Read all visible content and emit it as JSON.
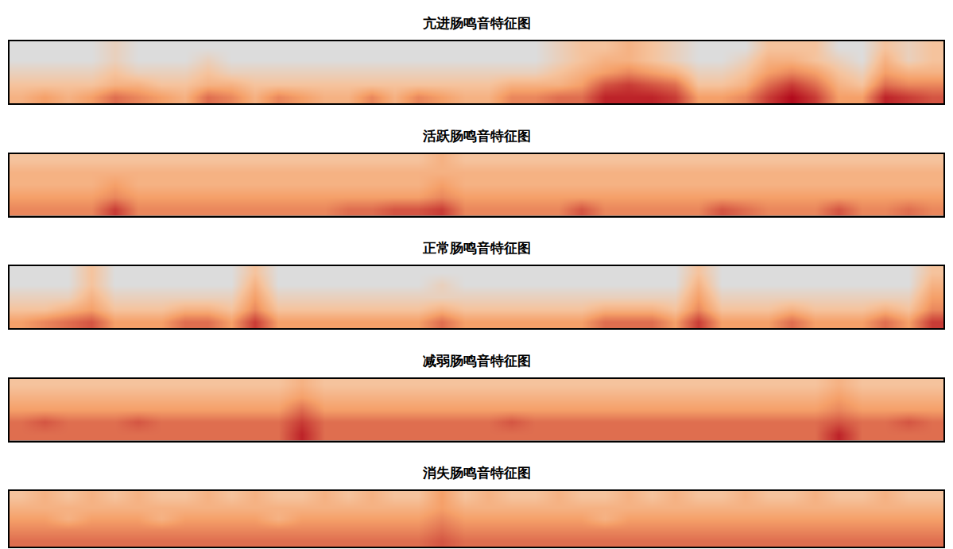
{
  "chart_data": [
    {
      "type": "heatmap",
      "title": "亢进肠鸣音特征图",
      "zlim": [
        0,
        10
      ],
      "tick_labels": false,
      "z": [
        [
          3,
          4,
          3,
          4,
          6,
          5,
          4,
          3,
          6,
          5,
          3,
          5,
          4,
          3,
          3,
          5,
          3,
          5,
          4,
          3,
          3,
          5,
          5,
          6,
          6,
          9,
          9,
          9,
          8,
          4,
          4,
          5,
          8,
          10,
          8,
          4,
          4,
          9,
          8,
          7
        ],
        [
          2,
          2,
          2,
          2,
          3,
          3,
          2,
          2,
          3,
          3,
          2,
          2,
          2,
          2,
          2,
          2,
          2,
          2,
          2,
          2,
          2,
          3,
          3,
          3,
          4,
          7,
          8,
          7,
          6,
          2,
          2,
          3,
          6,
          8,
          6,
          3,
          2,
          6,
          5,
          5
        ],
        [
          1,
          1,
          1,
          1,
          2,
          1,
          1,
          1,
          2,
          1,
          1,
          1,
          1,
          1,
          1,
          1,
          1,
          1,
          1,
          1,
          1,
          1,
          1,
          2,
          3,
          4,
          5,
          4,
          3,
          1,
          1,
          2,
          4,
          5,
          4,
          2,
          1,
          4,
          3,
          3
        ],
        [
          0,
          0,
          0,
          0,
          1,
          0,
          0,
          0,
          1,
          0,
          0,
          0,
          0,
          0,
          0,
          0,
          0,
          0,
          0,
          0,
          0,
          0,
          0,
          1,
          2,
          3,
          3,
          2,
          1,
          0,
          0,
          1,
          3,
          3,
          2,
          1,
          0,
          3,
          1,
          2
        ],
        [
          0,
          0,
          0,
          0,
          1,
          0,
          0,
          0,
          0,
          0,
          0,
          0,
          0,
          0,
          0,
          0,
          0,
          0,
          0,
          0,
          0,
          0,
          0,
          1,
          2,
          2,
          3,
          2,
          1,
          0,
          0,
          0,
          2,
          2,
          2,
          0,
          0,
          2,
          1,
          2
        ]
      ]
    },
    {
      "type": "heatmap",
      "title": "活跃肠鸣音特征图",
      "zlim": [
        0,
        10
      ],
      "tick_labels": false,
      "z": [
        [
          5,
          5,
          5,
          5,
          8,
          5,
          5,
          5,
          5,
          5,
          5,
          5,
          5,
          5,
          6,
          6,
          7,
          7,
          8,
          5,
          5,
          5,
          5,
          5,
          7,
          5,
          5,
          5,
          5,
          5,
          7,
          6,
          5,
          5,
          5,
          7,
          5,
          5,
          6,
          5
        ],
        [
          4,
          4,
          4,
          4,
          5,
          4,
          4,
          4,
          4,
          4,
          4,
          4,
          4,
          4,
          4,
          4,
          4,
          4,
          5,
          4,
          4,
          4,
          4,
          4,
          4,
          4,
          4,
          4,
          4,
          4,
          4,
          4,
          4,
          4,
          4,
          4,
          4,
          4,
          4,
          4
        ],
        [
          3,
          3,
          3,
          3,
          4,
          3,
          3,
          3,
          3,
          3,
          3,
          3,
          3,
          3,
          3,
          3,
          3,
          3,
          4,
          3,
          3,
          3,
          3,
          3,
          3,
          3,
          3,
          3,
          3,
          3,
          3,
          3,
          3,
          3,
          3,
          3,
          3,
          3,
          3,
          3
        ],
        [
          3,
          3,
          3,
          3,
          3,
          3,
          3,
          3,
          3,
          3,
          3,
          3,
          3,
          3,
          3,
          3,
          3,
          3,
          3,
          3,
          3,
          3,
          3,
          3,
          3,
          3,
          3,
          3,
          3,
          3,
          3,
          3,
          3,
          3,
          3,
          3,
          3,
          3,
          3,
          3
        ],
        [
          2,
          2,
          2,
          2,
          2,
          2,
          2,
          2,
          2,
          2,
          2,
          2,
          2,
          2,
          2,
          2,
          2,
          2,
          3,
          2,
          2,
          2,
          2,
          2,
          2,
          2,
          2,
          2,
          2,
          2,
          2,
          2,
          2,
          2,
          2,
          2,
          2,
          2,
          2,
          2
        ]
      ]
    },
    {
      "type": "heatmap",
      "title": "正常肠鸣音特征图",
      "zlim": [
        0,
        10
      ],
      "tick_labels": false,
      "z": [
        [
          4,
          5,
          6,
          7,
          4,
          4,
          4,
          6,
          6,
          4,
          8,
          4,
          4,
          4,
          4,
          4,
          4,
          4,
          6,
          4,
          4,
          4,
          4,
          4,
          4,
          6,
          6,
          6,
          4,
          8,
          4,
          4,
          4,
          6,
          4,
          4,
          4,
          6,
          4,
          8
        ],
        [
          2,
          2,
          3,
          4,
          2,
          2,
          2,
          3,
          3,
          2,
          5,
          2,
          2,
          2,
          2,
          2,
          2,
          2,
          3,
          2,
          2,
          2,
          2,
          2,
          2,
          3,
          3,
          3,
          2,
          5,
          2,
          2,
          2,
          3,
          2,
          2,
          2,
          3,
          2,
          5
        ],
        [
          1,
          1,
          1,
          3,
          1,
          1,
          1,
          1,
          1,
          1,
          4,
          1,
          1,
          1,
          1,
          1,
          1,
          1,
          1,
          1,
          1,
          1,
          1,
          1,
          1,
          1,
          1,
          1,
          1,
          4,
          1,
          1,
          1,
          1,
          1,
          1,
          1,
          1,
          1,
          4
        ],
        [
          0,
          0,
          0,
          2,
          0,
          0,
          0,
          0,
          0,
          0,
          3,
          0,
          0,
          0,
          0,
          0,
          0,
          0,
          1,
          0,
          0,
          0,
          0,
          0,
          0,
          0,
          0,
          0,
          0,
          3,
          0,
          0,
          0,
          0,
          0,
          0,
          0,
          0,
          0,
          3
        ],
        [
          0,
          0,
          0,
          2,
          0,
          0,
          0,
          0,
          0,
          0,
          2,
          0,
          0,
          0,
          0,
          0,
          0,
          0,
          0,
          0,
          0,
          0,
          0,
          0,
          0,
          0,
          0,
          0,
          0,
          2,
          0,
          0,
          0,
          0,
          0,
          0,
          0,
          0,
          0,
          2
        ]
      ]
    },
    {
      "type": "heatmap",
      "title": "减弱肠鸣音特征图",
      "zlim": [
        0,
        10
      ],
      "tick_labels": false,
      "z": [
        [
          6,
          6,
          6,
          6,
          6,
          6,
          6,
          6,
          6,
          6,
          6,
          6,
          9,
          6,
          6,
          6,
          6,
          6,
          6,
          6,
          6,
          6,
          6,
          6,
          6,
          6,
          6,
          6,
          6,
          6,
          6,
          6,
          6,
          6,
          6,
          9,
          6,
          6,
          6,
          6
        ],
        [
          6,
          7,
          6,
          6,
          6,
          7,
          6,
          6,
          6,
          6,
          6,
          6,
          8,
          6,
          6,
          6,
          6,
          6,
          6,
          6,
          6,
          7,
          6,
          6,
          6,
          6,
          6,
          6,
          6,
          6,
          6,
          6,
          6,
          6,
          6,
          7,
          6,
          6,
          7,
          6
        ],
        [
          4,
          4,
          4,
          4,
          4,
          4,
          4,
          4,
          4,
          4,
          4,
          4,
          6,
          4,
          4,
          4,
          4,
          4,
          4,
          4,
          4,
          4,
          4,
          4,
          4,
          4,
          4,
          4,
          4,
          4,
          4,
          4,
          4,
          4,
          4,
          5,
          4,
          4,
          4,
          4
        ],
        [
          3,
          3,
          3,
          3,
          3,
          3,
          3,
          3,
          3,
          3,
          3,
          3,
          4,
          3,
          3,
          3,
          3,
          3,
          3,
          3,
          3,
          3,
          3,
          3,
          3,
          3,
          3,
          3,
          3,
          3,
          3,
          3,
          3,
          3,
          3,
          4,
          3,
          3,
          3,
          3
        ],
        [
          2,
          2,
          2,
          2,
          2,
          2,
          2,
          2,
          2,
          2,
          2,
          2,
          3,
          2,
          2,
          2,
          2,
          2,
          2,
          2,
          2,
          2,
          2,
          2,
          2,
          2,
          2,
          2,
          2,
          2,
          2,
          2,
          2,
          2,
          2,
          3,
          2,
          2,
          2,
          2
        ]
      ]
    },
    {
      "type": "heatmap",
      "title": "消失肠鸣音特征图",
      "zlim": [
        0,
        10
      ],
      "tick_labels": false,
      "z": [
        [
          6,
          6,
          6,
          6,
          6,
          6,
          6,
          6,
          6,
          6,
          6,
          6,
          6,
          6,
          6,
          6,
          6,
          6,
          7,
          6,
          6,
          6,
          6,
          6,
          6,
          6,
          6,
          6,
          6,
          6,
          6,
          6,
          6,
          6,
          6,
          6,
          6,
          6,
          6,
          6
        ],
        [
          5,
          5,
          5,
          5,
          5,
          5,
          5,
          5,
          5,
          5,
          5,
          5,
          5,
          5,
          5,
          5,
          5,
          5,
          6,
          5,
          5,
          5,
          5,
          5,
          5,
          5,
          5,
          5,
          5,
          5,
          5,
          5,
          5,
          5,
          5,
          5,
          5,
          5,
          5,
          5
        ],
        [
          4,
          4,
          3,
          4,
          4,
          4,
          3,
          4,
          4,
          4,
          4,
          3,
          4,
          4,
          4,
          4,
          4,
          4,
          5,
          4,
          4,
          4,
          4,
          4,
          4,
          3,
          4,
          4,
          4,
          4,
          4,
          4,
          4,
          4,
          4,
          4,
          4,
          4,
          4,
          4
        ],
        [
          3,
          3,
          3,
          3,
          3,
          3,
          3,
          3,
          3,
          3,
          3,
          3,
          3,
          3,
          3,
          3,
          3,
          3,
          4,
          3,
          3,
          3,
          3,
          3,
          3,
          3,
          3,
          3,
          3,
          3,
          3,
          3,
          3,
          3,
          3,
          3,
          3,
          3,
          3,
          3
        ],
        [
          2,
          3,
          2,
          3,
          2,
          3,
          2,
          2,
          3,
          2,
          3,
          2,
          2,
          3,
          2,
          3,
          2,
          2,
          4,
          2,
          3,
          2,
          2,
          3,
          2,
          2,
          3,
          2,
          3,
          2,
          2,
          3,
          2,
          2,
          3,
          2,
          2,
          3,
          2,
          2
        ]
      ]
    }
  ]
}
